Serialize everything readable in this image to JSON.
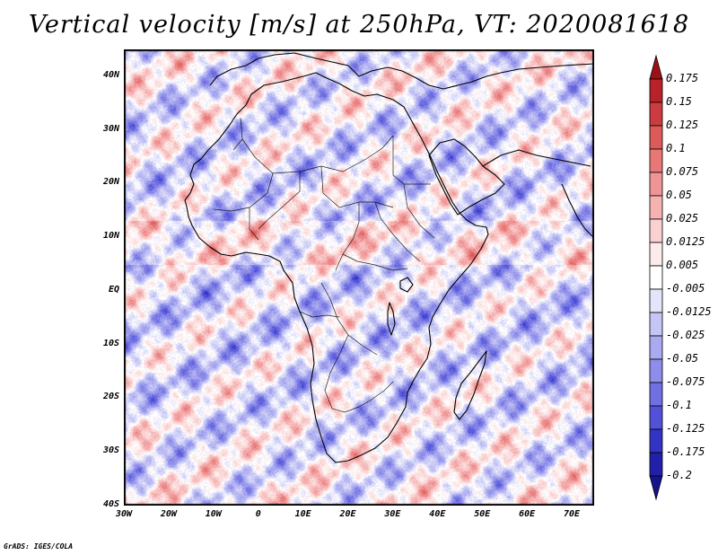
{
  "title": "Vertical velocity [m/s] at 250hPa, VT: 2020081618",
  "credit": "GrADS: IGES/COLA",
  "map": {
    "lon_range": [
      -30,
      75
    ],
    "lat_range": [
      -40,
      45
    ],
    "lat_ticks": [
      "40N",
      "30N",
      "20N",
      "10N",
      "EQ",
      "10S",
      "20S",
      "30S",
      "40S"
    ],
    "lat_values": [
      40,
      30,
      20,
      10,
      0,
      -10,
      -20,
      -30,
      -40
    ],
    "lon_ticks": [
      "30W",
      "20W",
      "10W",
      "0",
      "10E",
      "20E",
      "30E",
      "40E",
      "50E",
      "60E",
      "70E"
    ],
    "lon_values": [
      -30,
      -20,
      -10,
      0,
      10,
      20,
      30,
      40,
      50,
      60,
      70
    ],
    "field": "vertical velocity",
    "units": "m/s",
    "level": "250hPa",
    "valid_time": "2020081618"
  },
  "colorbar": {
    "labels": [
      "0.175",
      "0.15",
      "0.125",
      "0.1",
      "0.075",
      "0.05",
      "0.025",
      "0.0125",
      "0.005",
      "-0.005",
      "-0.0125",
      "-0.025",
      "-0.05",
      "-0.075",
      "-0.1",
      "-0.125",
      "-0.175",
      "-0.2"
    ],
    "colors": [
      "#9e0f16",
      "#b8222b",
      "#cc3b3f",
      "#dc5a5a",
      "#e87777",
      "#f09595",
      "#f6b2b2",
      "#fad0d0",
      "#fdeaea",
      "#ffffff",
      "#e4e4fb",
      "#c6c6f6",
      "#aaaaf0",
      "#8e8eea",
      "#7070e3",
      "#5252d8",
      "#3434c4",
      "#2020a8",
      "#16148c"
    ]
  }
}
